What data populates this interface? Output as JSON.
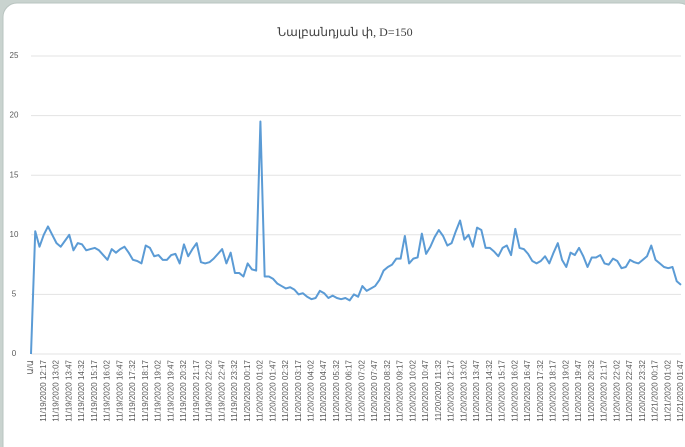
{
  "chart_data": {
    "type": "line",
    "title": "Նալբանդյան փ, D=150",
    "categories": [
      "Ա/Ա",
      null,
      null,
      "11/19/2020 12:17",
      null,
      null,
      "11/19/2020 13:02",
      null,
      null,
      "11/19/2020 13:47",
      null,
      null,
      "11/19/2020 14:32",
      null,
      null,
      "11/19/2020 15:17",
      null,
      null,
      "11/19/2020 16:02",
      null,
      null,
      "11/19/2020 16:47",
      null,
      null,
      "11/19/2020 17:32",
      null,
      null,
      "11/19/2020 18:17",
      null,
      null,
      "11/19/2020 19:02",
      null,
      null,
      "11/19/2020 19:47",
      null,
      null,
      "11/19/2020 20:32",
      null,
      null,
      "11/19/2020 21:17",
      null,
      null,
      "11/19/2020 22:02",
      null,
      null,
      "11/19/2020 22:47",
      null,
      null,
      "11/19/2020 23:32",
      null,
      null,
      "11/20/2020 00:17",
      null,
      null,
      "11/20/2020 01:02",
      null,
      null,
      "11/20/2020 01:47",
      null,
      null,
      "11/20/2020 02:32",
      null,
      null,
      "11/20/2020 03:17",
      null,
      null,
      "11/20/2020 04:02",
      null,
      null,
      "11/20/2020 04:47",
      null,
      null,
      "11/20/2020 05:32",
      null,
      null,
      "11/20/2020 06:17",
      null,
      null,
      "11/20/2020 07:02",
      null,
      null,
      "11/20/2020 07:47",
      null,
      null,
      "11/20/2020 08:32",
      null,
      null,
      "11/20/2020 09:17",
      null,
      null,
      "11/20/2020 10:02",
      null,
      null,
      "11/20/2020 10:47",
      null,
      null,
      "11/20/2020 11:32",
      null,
      null,
      "11/20/2020 12:17",
      null,
      null,
      "11/20/2020 13:02",
      null,
      null,
      "11/20/2020 13:47",
      null,
      null,
      "11/20/2020 14:32",
      null,
      null,
      "11/20/2020 15:17",
      null,
      null,
      "11/20/2020 16:02",
      null,
      null,
      "11/20/2020 16:47",
      null,
      null,
      "11/20/2020 17:32",
      null,
      null,
      "11/20/2020 18:17",
      null,
      null,
      "11/20/2020 19:02",
      null,
      null,
      "11/20/2020 19:47",
      null,
      null,
      "11/20/2020 20:32",
      null,
      null,
      "11/20/2020 21:17",
      null,
      null,
      "11/20/2020 22:02",
      null,
      null,
      "11/20/2020 22:47",
      null,
      null,
      "11/20/2020 23:32",
      null,
      null,
      "11/21/2020 00:17",
      null,
      null,
      "11/21/2020 01:02",
      null,
      null,
      "11/21/2020 01:47"
    ],
    "values": [
      0,
      10.3,
      9,
      10,
      10.7,
      10,
      9.3,
      9,
      9.5,
      10,
      8.7,
      9.3,
      9.2,
      8.7,
      8.8,
      8.9,
      8.7,
      8.3,
      7.9,
      8.8,
      8.5,
      8.8,
      9,
      8.5,
      7.9,
      7.8,
      7.6,
      9.1,
      8.9,
      8.2,
      8.3,
      7.9,
      7.9,
      8.3,
      8.4,
      7.6,
      9.2,
      8.2,
      8.8,
      9.3,
      7.7,
      7.6,
      7.7,
      8,
      8.4,
      8.8,
      7.6,
      8.5,
      6.8,
      6.8,
      6.5,
      7.6,
      7.1,
      7.0,
      19.5,
      6.5,
      6.5,
      6.3,
      5.9,
      5.7,
      5.5,
      5.6,
      5.4,
      5.0,
      5.1,
      4.8,
      4.6,
      4.7,
      5.3,
      5.1,
      4.7,
      4.9,
      4.7,
      4.6,
      4.7,
      4.5,
      5.0,
      4.8,
      5.7,
      5.3,
      5.5,
      5.7,
      6.2,
      7.0,
      7.3,
      7.5,
      8.0,
      8.0,
      9.9,
      7.6,
      8.0,
      8.1,
      10.1,
      8.4,
      9.0,
      9.8,
      10.4,
      9.9,
      9.1,
      9.3,
      10.3,
      11.2,
      9.6,
      10.0,
      9.0,
      10.6,
      10.4,
      8.9,
      8.9,
      8.6,
      8.2,
      8.9,
      9.1,
      8.3,
      10.5,
      8.9,
      8.8,
      8.4,
      7.8,
      7.6,
      7.8,
      8.2,
      7.6,
      8.5,
      9.3,
      7.9,
      7.3,
      8.5,
      8.3,
      8.9,
      8.2,
      7.3,
      8.1,
      8.1,
      8.3,
      7.6,
      7.5,
      8.0,
      7.8,
      7.2,
      7.3,
      7.9,
      7.7,
      7.6,
      7.9,
      8.2,
      9.1,
      7.9,
      7.6,
      7.3,
      7.2,
      7.3,
      6.1,
      5.8
    ],
    "color": "#5b9bd5",
    "ylim": [
      0,
      25
    ],
    "yticks": [
      0,
      5,
      10,
      15,
      20,
      25
    ],
    "grid": true
  }
}
